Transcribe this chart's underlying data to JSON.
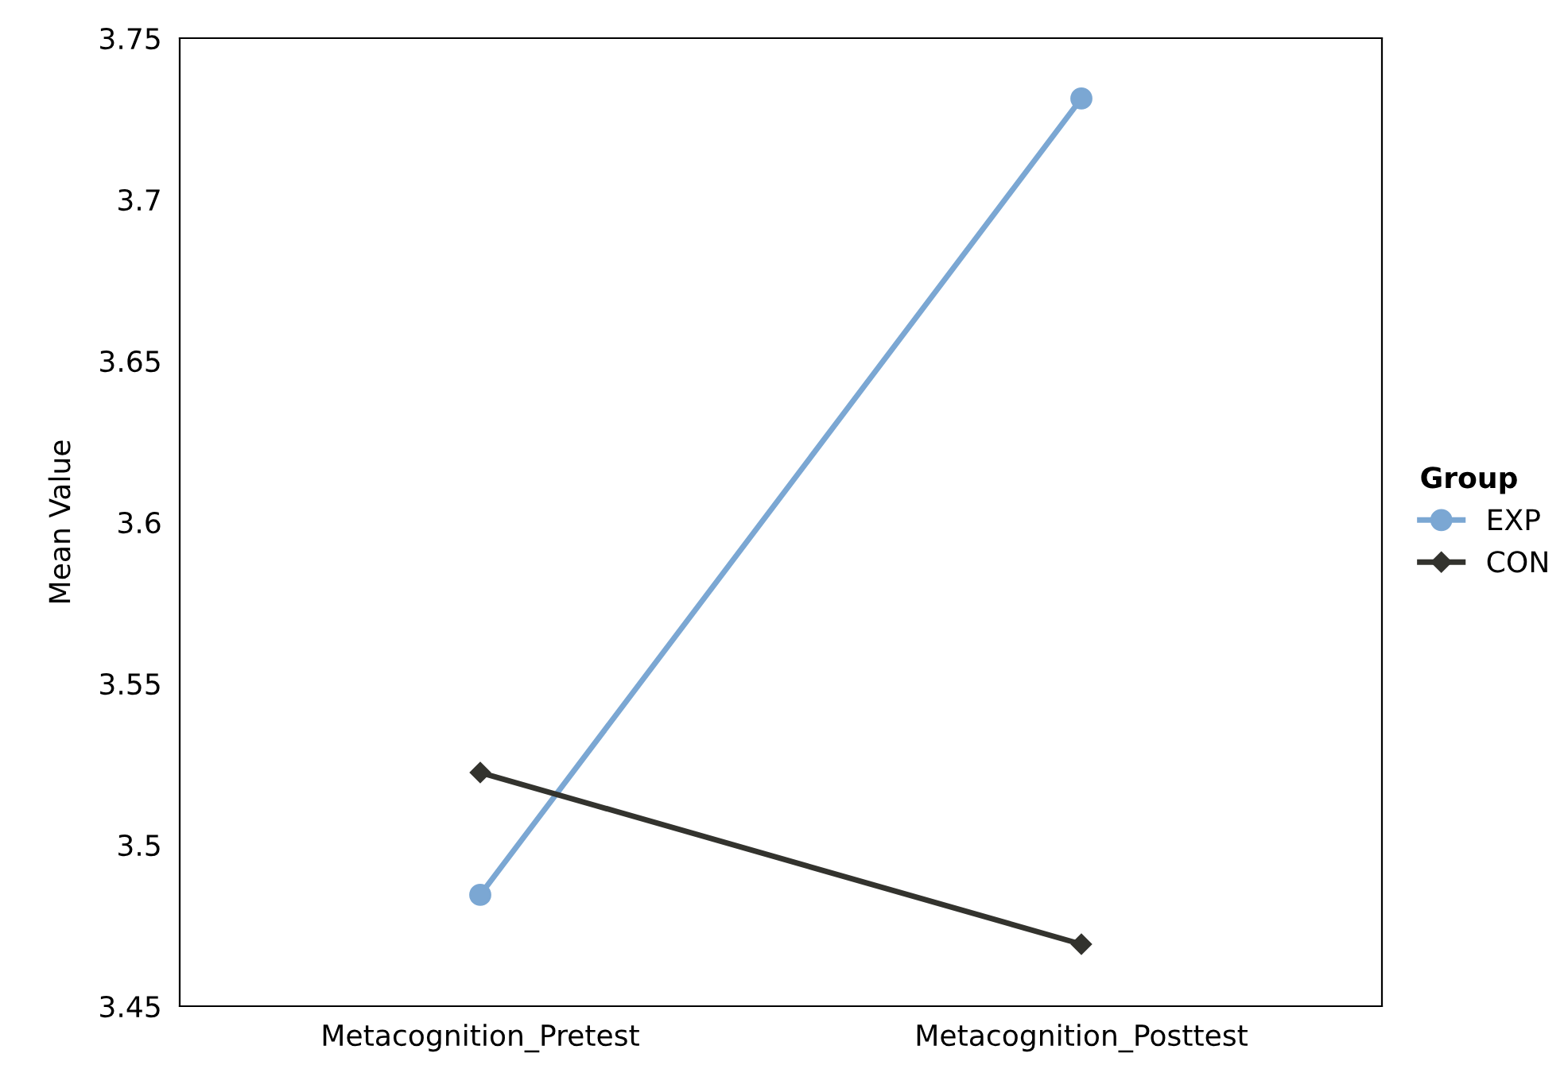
{
  "chart_data": {
    "type": "line",
    "ylabel": "Mean Value",
    "legend_title": "Group",
    "categories": [
      "Metacognition_Pretest",
      "Metacognition_Posttest"
    ],
    "series": [
      {
        "name": "EXP",
        "color": "#7ba7d3",
        "marker": "circle",
        "values": [
          3.4845,
          3.7313
        ]
      },
      {
        "name": "CON",
        "color": "#33332e",
        "marker": "diamond",
        "values": [
          3.5224,
          3.4692
        ]
      }
    ],
    "ylim": [
      3.45,
      3.75
    ],
    "yticks": [
      3.45,
      3.5,
      3.55,
      3.6,
      3.65,
      3.7,
      3.75
    ],
    "grid": false,
    "legend": "right",
    "line_style": "solid"
  }
}
